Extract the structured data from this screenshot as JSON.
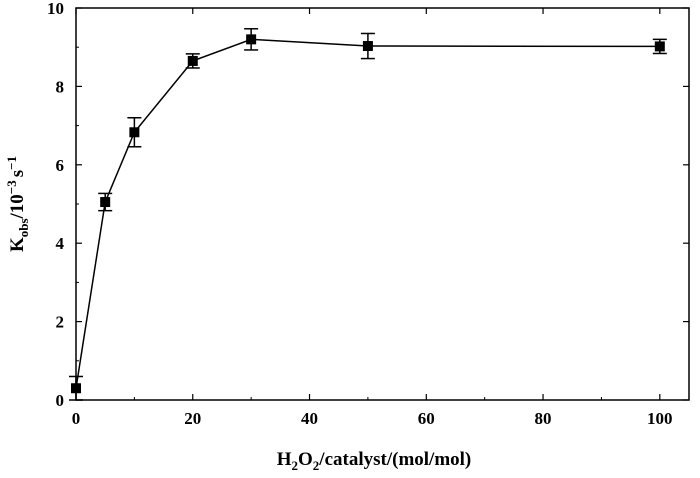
{
  "chart_data": {
    "type": "scatter",
    "title": "",
    "xlabel": {
      "parts": [
        "H",
        "2",
        "O",
        "2",
        "/catalyst/(mol/mol)"
      ]
    },
    "ylabel": {
      "parts": [
        "K",
        "obs",
        "/10",
        "−3",
        "s",
        "−1"
      ]
    },
    "xlim": [
      0,
      105
    ],
    "ylim": [
      0,
      10
    ],
    "x_ticks": [
      0,
      20,
      40,
      60,
      80,
      100
    ],
    "y_ticks": [
      0,
      2,
      4,
      6,
      8,
      10
    ],
    "x_tick_labels": [
      "0",
      "20",
      "40",
      "60",
      "80",
      "100"
    ],
    "y_tick_labels": [
      "0",
      "2",
      "4",
      "6",
      "8",
      "10"
    ],
    "grid": false,
    "marker": "square",
    "connected": true,
    "colors": {
      "marker": "#000000",
      "line": "#000000",
      "axis": "#000000"
    },
    "series": [
      {
        "x": [
          0,
          5,
          10,
          20,
          30,
          50,
          100
        ],
        "y": [
          0.3,
          5.05,
          6.83,
          8.65,
          9.2,
          9.03,
          9.02
        ],
        "y_err": [
          0.3,
          0.22,
          0.37,
          0.18,
          0.27,
          0.32,
          0.18
        ]
      }
    ]
  }
}
